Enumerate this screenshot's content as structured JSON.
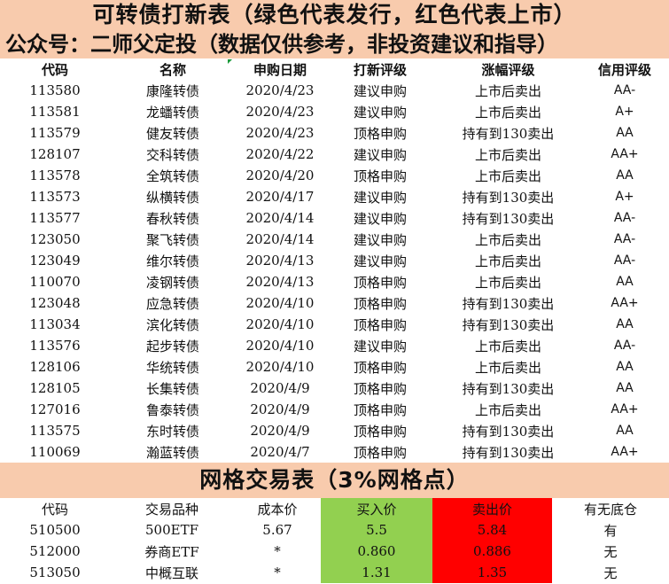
{
  "header": {
    "title": "可转债打新表（绿色代表发行，红色代表上市）",
    "subtitle": "公众号：二师父定投（数据仅供参考，非投资建议和指导）"
  },
  "bond_table": {
    "columns": [
      "代码",
      "名称",
      "申购日期",
      "打新评级",
      "涨幅评级",
      "信用评级"
    ],
    "rows": [
      [
        "113580",
        "康隆转债",
        "2020/4/23",
        "建议申购",
        "上市后卖出",
        "AA-"
      ],
      [
        "113581",
        "龙蟠转债",
        "2020/4/23",
        "建议申购",
        "上市后卖出",
        "A+"
      ],
      [
        "113579",
        "健友转债",
        "2020/4/23",
        "顶格申购",
        "持有到130卖出",
        "AA"
      ],
      [
        "128107",
        "交科转债",
        "2020/4/22",
        "建议申购",
        "上市后卖出",
        "AA+"
      ],
      [
        "113578",
        "全筑转债",
        "2020/4/20",
        "顶格申购",
        "上市后卖出",
        "AA"
      ],
      [
        "113573",
        "纵横转债",
        "2020/4/17",
        "建议申购",
        "持有到130卖出",
        "A+"
      ],
      [
        "113577",
        "春秋转债",
        "2020/4/14",
        "建议申购",
        "持有到130卖出",
        "AA-"
      ],
      [
        "123050",
        "聚飞转债",
        "2020/4/14",
        "建议申购",
        "上市后卖出",
        "AA-"
      ],
      [
        "123049",
        "维尔转债",
        "2020/4/13",
        "建议申购",
        "上市后卖出",
        "AA-"
      ],
      [
        "110070",
        "凌钢转债",
        "2020/4/13",
        "顶格申购",
        "上市后卖出",
        "AA"
      ],
      [
        "123048",
        "应急转债",
        "2020/4/10",
        "顶格申购",
        "持有到130卖出",
        "AA+"
      ],
      [
        "113034",
        "滨化转债",
        "2020/4/10",
        "顶格申购",
        "持有到130卖出",
        "AA"
      ],
      [
        "113576",
        "起步转债",
        "2020/4/10",
        "建议申购",
        "上市后卖出",
        "AA-"
      ],
      [
        "128106",
        "华统转债",
        "2020/4/10",
        "顶格申购",
        "上市后卖出",
        "AA"
      ],
      [
        "128105",
        "长集转债",
        "2020/4/9",
        "顶格申购",
        "持有到130卖出",
        "AA"
      ],
      [
        "127016",
        "鲁泰转债",
        "2020/4/9",
        "顶格申购",
        "上市后卖出",
        "AA+"
      ],
      [
        "113575",
        "东时转债",
        "2020/4/9",
        "顶格申购",
        "持有到130卖出",
        "AA"
      ],
      [
        "110069",
        "瀚蓝转债",
        "2020/4/7",
        "顶格申购",
        "持有到130卖出",
        "AA+"
      ]
    ]
  },
  "grid_table": {
    "title": "网格交易表（3%网格点）",
    "columns": [
      "代码",
      "交易品种",
      "成本价",
      "买入价",
      "卖出价",
      "有无底仓"
    ],
    "rows": [
      [
        "510500",
        "500ETF",
        "5.67",
        "5.5",
        "5.84",
        "有"
      ],
      [
        "512000",
        "券商ETF",
        "*",
        "0.860",
        "0.886",
        "无"
      ],
      [
        "513050",
        "中概互联",
        "*",
        "1.31",
        "1.35",
        "无"
      ]
    ]
  },
  "colors": {
    "banner": "#f8cbad",
    "buy": "#92d050",
    "sell": "#ff0000"
  }
}
